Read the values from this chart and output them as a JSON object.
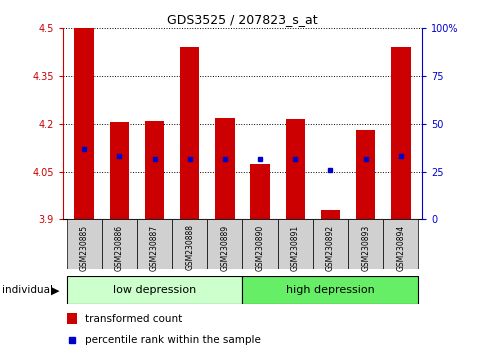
{
  "title": "GDS3525 / 207823_s_at",
  "samples": [
    "GSM230885",
    "GSM230886",
    "GSM230887",
    "GSM230888",
    "GSM230889",
    "GSM230890",
    "GSM230891",
    "GSM230892",
    "GSM230893",
    "GSM230894"
  ],
  "bar_tops": [
    4.5,
    4.205,
    4.21,
    4.44,
    4.22,
    4.075,
    4.215,
    3.93,
    4.18,
    4.44
  ],
  "bar_bottom": 3.9,
  "blue_values": [
    4.12,
    4.1,
    4.09,
    4.09,
    4.09,
    4.09,
    4.09,
    4.055,
    4.09,
    4.1
  ],
  "ylim": [
    3.9,
    4.5
  ],
  "yticks": [
    3.9,
    4.05,
    4.2,
    4.35,
    4.5
  ],
  "ytick_labels": [
    "3.9",
    "4.05",
    "4.2",
    "4.35",
    "4.5"
  ],
  "y2lim": [
    0,
    100
  ],
  "y2ticks": [
    0,
    25,
    50,
    75,
    100
  ],
  "y2ticklabels": [
    "0",
    "25",
    "50",
    "75",
    "100%"
  ],
  "left_color": "#cc0000",
  "right_color": "#0000cc",
  "bar_color": "#cc0000",
  "dot_color": "#0000cc",
  "group1_label": "low depression",
  "group2_label": "high depression",
  "group1_n": 5,
  "group2_n": 5,
  "group1_color": "#ccffcc",
  "group2_color": "#66ee66",
  "group_label": "individual",
  "legend_items": [
    "transformed count",
    "percentile rank within the sample"
  ],
  "bar_width": 0.55,
  "bg_color": "#ffffff",
  "xtick_bg": "#d0d0d0"
}
